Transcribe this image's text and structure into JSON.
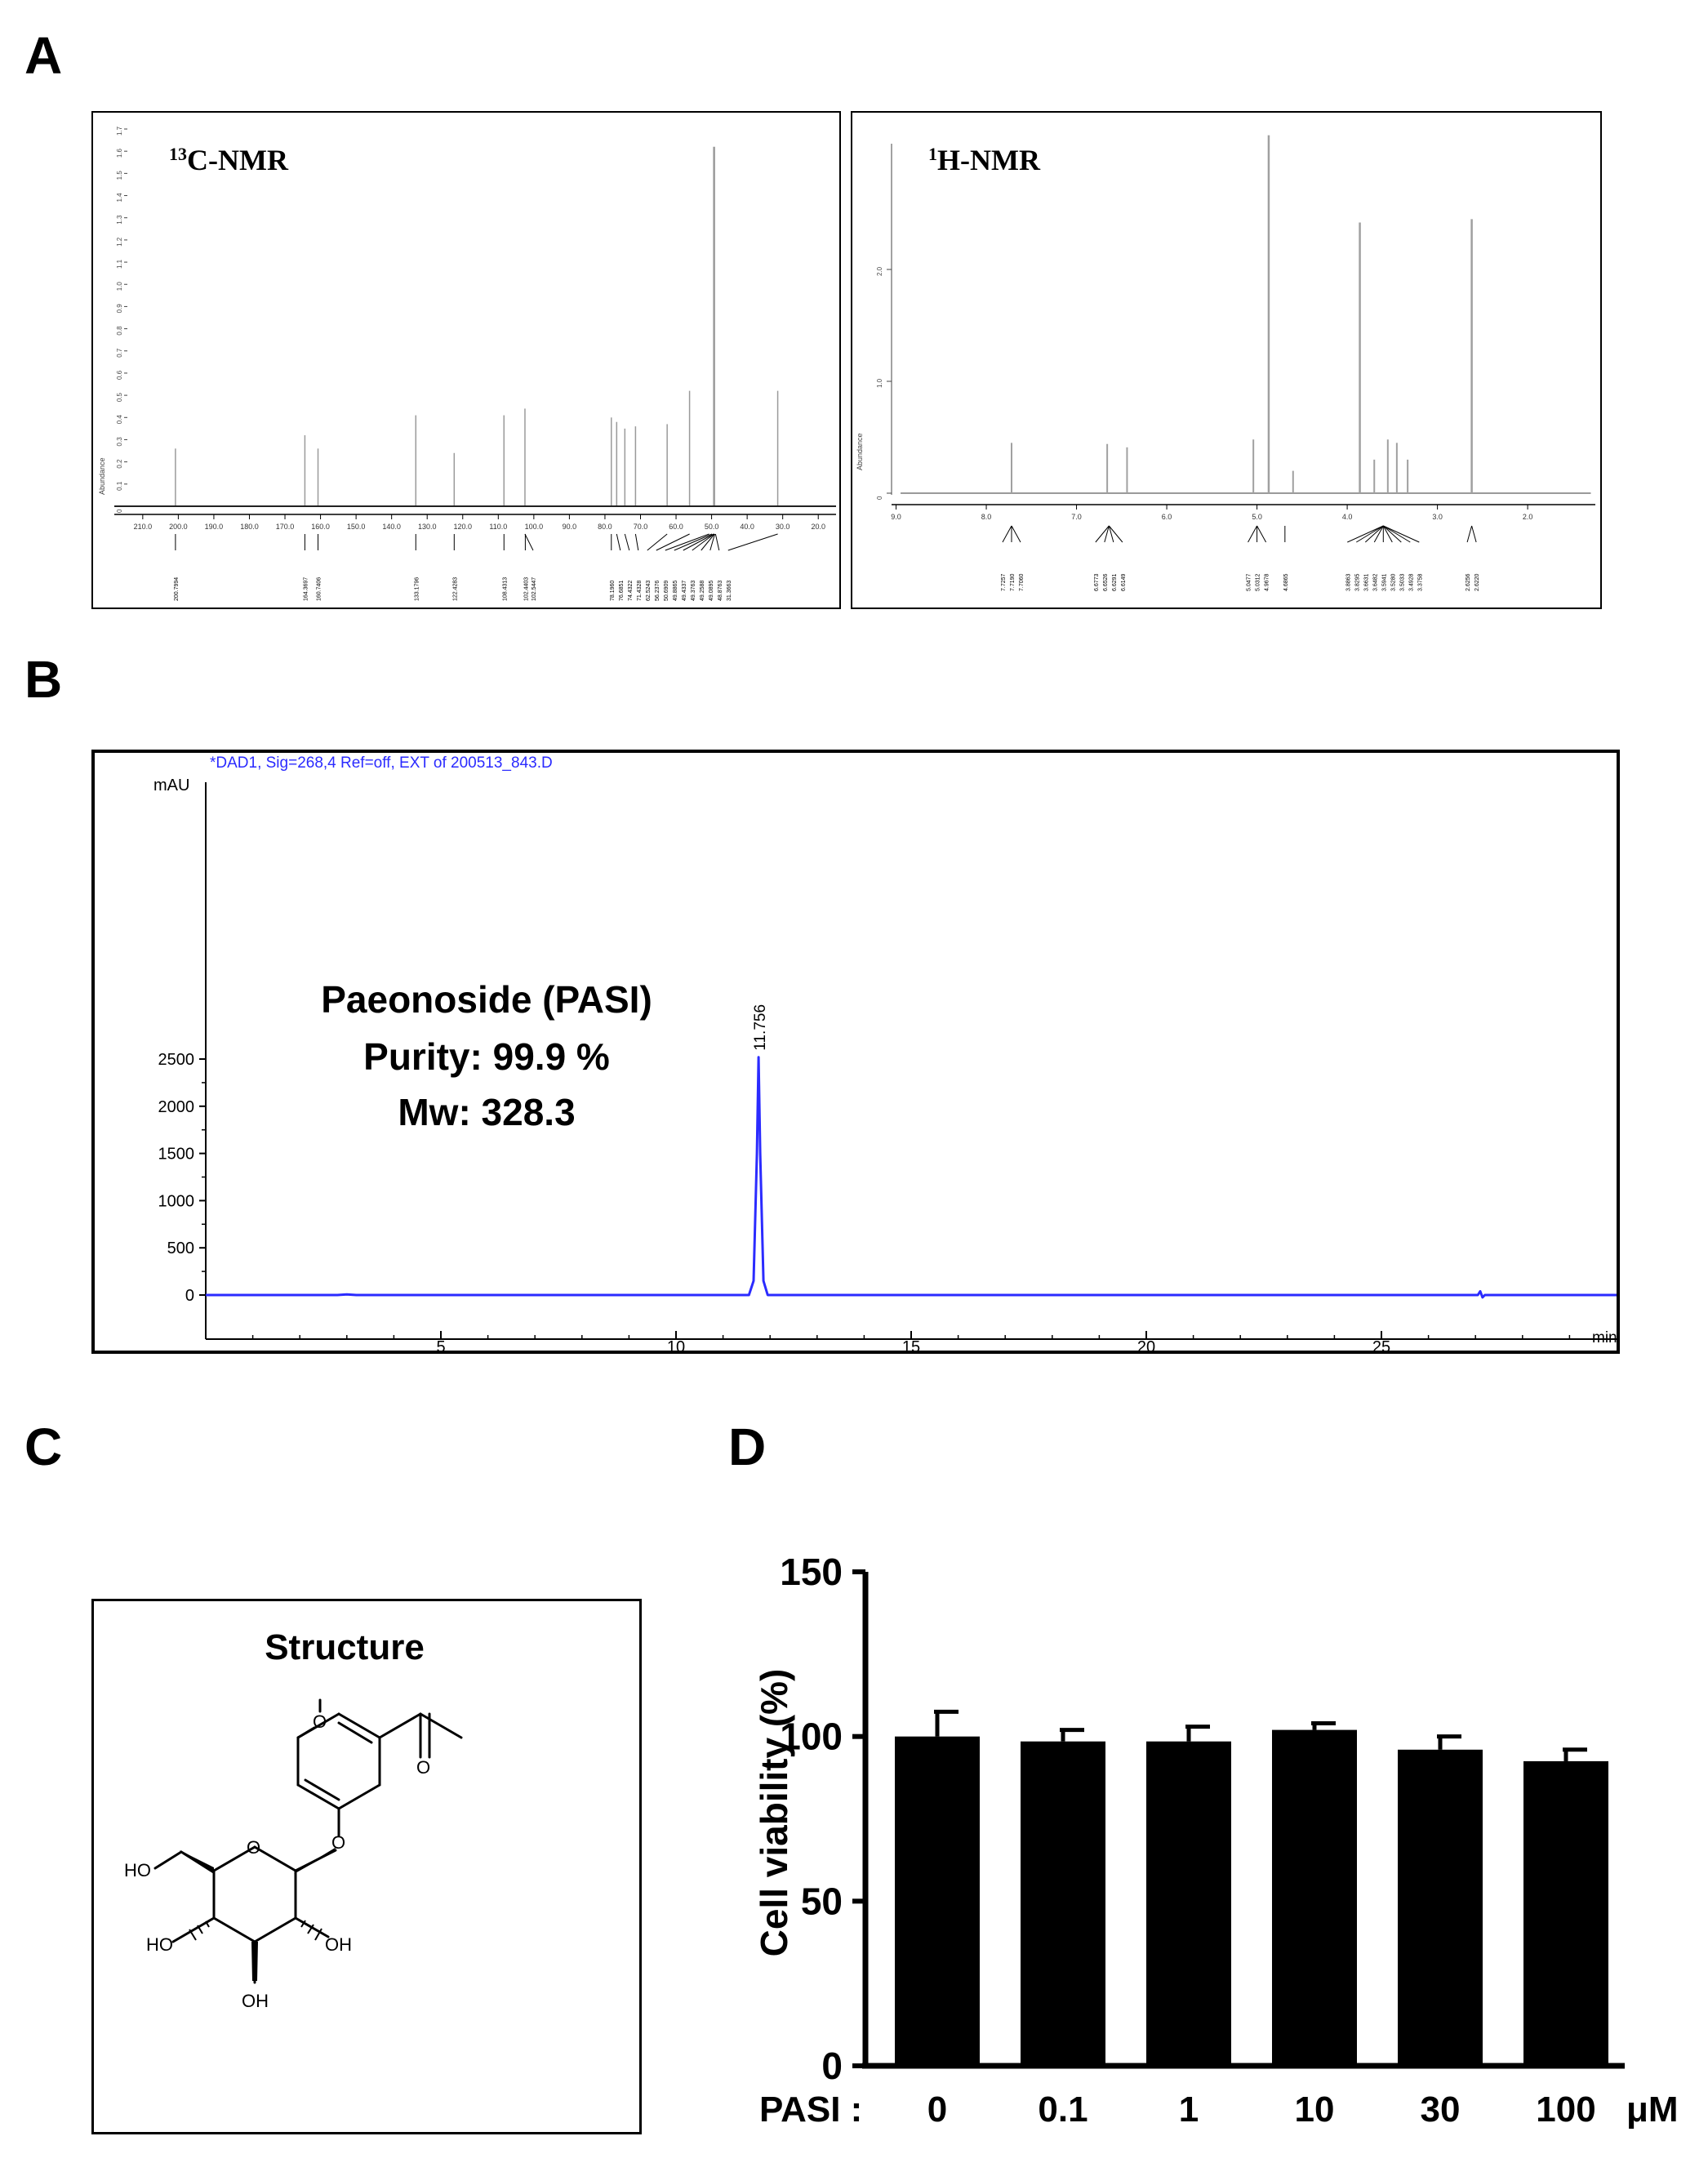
{
  "panels": {
    "a": "A",
    "b": "B",
    "c": "C",
    "d": "D"
  },
  "nmr": {
    "c13": {
      "label_sup": "13",
      "label_main": "C-NMR",
      "y_axis_label": "Abundance",
      "y_ticks": [
        "0",
        "0.1",
        "0.2",
        "0.3",
        "0.4",
        "0.5",
        "0.6",
        "0.7",
        "0.8",
        "0.9",
        "1.0",
        "1.1",
        "1.2",
        "1.3",
        "1.4",
        "1.5",
        "1.6",
        "1.7"
      ],
      "x_ticks": [
        "210.0",
        "200.0",
        "190.0",
        "180.0",
        "170.0",
        "160.0",
        "150.0",
        "140.0",
        "130.0",
        "120.0",
        "110.0",
        "100.0",
        "90.0",
        "80.0",
        "70.0",
        "60.0",
        "50.0",
        "40.0",
        "30.0",
        "20.0"
      ],
      "peak_labels": [
        "200.7994",
        "164.3697",
        "160.7406",
        "133.1796",
        "122.4283",
        "108.4313",
        "102.4403",
        "102.5447",
        "78.1960",
        "76.6851",
        "74.4322",
        "71.4328",
        "62.5243",
        "56.2376",
        "50.6909",
        "49.8865",
        "49.4337",
        "49.3763",
        "49.2588",
        "49.0895",
        "48.8763",
        "31.3663"
      ],
      "peaks": [
        {
          "ppm": 200.8,
          "height": 0.26
        },
        {
          "ppm": 164.4,
          "height": 0.32
        },
        {
          "ppm": 160.7,
          "height": 0.26
        },
        {
          "ppm": 133.2,
          "height": 0.41
        },
        {
          "ppm": 122.4,
          "height": 0.24
        },
        {
          "ppm": 108.4,
          "height": 0.41
        },
        {
          "ppm": 102.5,
          "height": 0.44
        },
        {
          "ppm": 78.2,
          "height": 0.4
        },
        {
          "ppm": 76.7,
          "height": 0.38
        },
        {
          "ppm": 74.4,
          "height": 0.35
        },
        {
          "ppm": 71.4,
          "height": 0.36
        },
        {
          "ppm": 62.5,
          "height": 0.37
        },
        {
          "ppm": 56.2,
          "height": 0.52
        },
        {
          "ppm": 49.3,
          "height": 1.62
        },
        {
          "ppm": 31.4,
          "height": 0.52
        }
      ]
    },
    "h1": {
      "label_sup": "1",
      "label_main": "H-NMR",
      "y_axis_label": "Abundance",
      "y_ticks": [
        "0",
        "1.0",
        "2.0"
      ],
      "x_ticks": [
        "9.0",
        "8.0",
        "7.0",
        "6.0",
        "5.0",
        "4.0",
        "3.0",
        "2.0"
      ],
      "peak_labels": [
        "7.7257",
        "7.7190",
        "7.7060",
        "6.6773",
        "6.6526",
        "6.6291",
        "6.6149",
        "5.0477",
        "5.0312",
        "4.9678",
        "4.6865",
        "3.8863",
        "3.8295",
        "3.6631",
        "3.6482",
        "3.5941",
        "3.5280",
        "3.5033",
        "3.4928",
        "3.3758",
        "2.6256",
        "2.6220"
      ],
      "peaks": [
        {
          "ppm": 7.72,
          "height": 0.45
        },
        {
          "ppm": 6.66,
          "height": 0.44
        },
        {
          "ppm": 6.44,
          "height": 0.41
        },
        {
          "ppm": 5.04,
          "height": 0.48
        },
        {
          "ppm": 4.87,
          "height": 3.2
        },
        {
          "ppm": 4.6,
          "height": 0.2
        },
        {
          "ppm": 3.86,
          "height": 2.42
        },
        {
          "ppm": 3.7,
          "height": 0.3
        },
        {
          "ppm": 3.55,
          "height": 0.48
        },
        {
          "ppm": 3.45,
          "height": 0.45
        },
        {
          "ppm": 3.33,
          "height": 0.3
        },
        {
          "ppm": 2.62,
          "height": 2.45
        }
      ]
    }
  },
  "hplc": {
    "header": "*DAD1, Sig=268,4 Ref=off, EXT of 200513_843.D",
    "y_unit": "mAU",
    "x_unit": "min",
    "peak_label": "11.756",
    "annotation": [
      "Paeonoside (PASI)",
      "Purity: 99.9 %",
      "Mw: 328.3"
    ]
  },
  "structure": {
    "title": "Structure",
    "atoms": {
      "ho_left": "HO",
      "ho_bottom_left": "HO",
      "oh_right": "OH",
      "oh_bottom": "OH"
    }
  },
  "chart_data": [
    {
      "type": "line",
      "title": "",
      "xlabel": "min",
      "ylabel": "mAU",
      "xlim": [
        0,
        30
      ],
      "ylim": [
        -50,
        2700
      ],
      "x_ticks": [
        5,
        10,
        15,
        20,
        25
      ],
      "y_ticks": [
        0,
        500,
        1000,
        1500,
        2000,
        2500
      ],
      "series": [
        {
          "x": [
            0,
            2.8,
            3.0,
            3.2,
            11.55,
            11.65,
            11.72,
            11.756,
            11.79,
            11.86,
            11.95,
            27.05,
            27.1,
            27.15,
            27.2,
            30
          ],
          "y": [
            0,
            0,
            6,
            0,
            0,
            150,
            1500,
            2520,
            1500,
            150,
            0,
            0,
            40,
            -25,
            0,
            0
          ]
        }
      ],
      "colors": {
        "line": "#2b2bff"
      }
    },
    {
      "type": "bar",
      "title": "",
      "xlabel": "PASI :",
      "x_unit": "μM",
      "ylabel": "Cell viability (%)",
      "categories": [
        "0",
        "0.1",
        "1",
        "10",
        "30",
        "100"
      ],
      "values": [
        100,
        98.5,
        98.5,
        102,
        96,
        92.5
      ],
      "errors": [
        7.5,
        3.5,
        4.5,
        2,
        4,
        3.5
      ],
      "ylim": [
        0,
        150
      ],
      "y_ticks": [
        0,
        50,
        100,
        150
      ]
    }
  ]
}
